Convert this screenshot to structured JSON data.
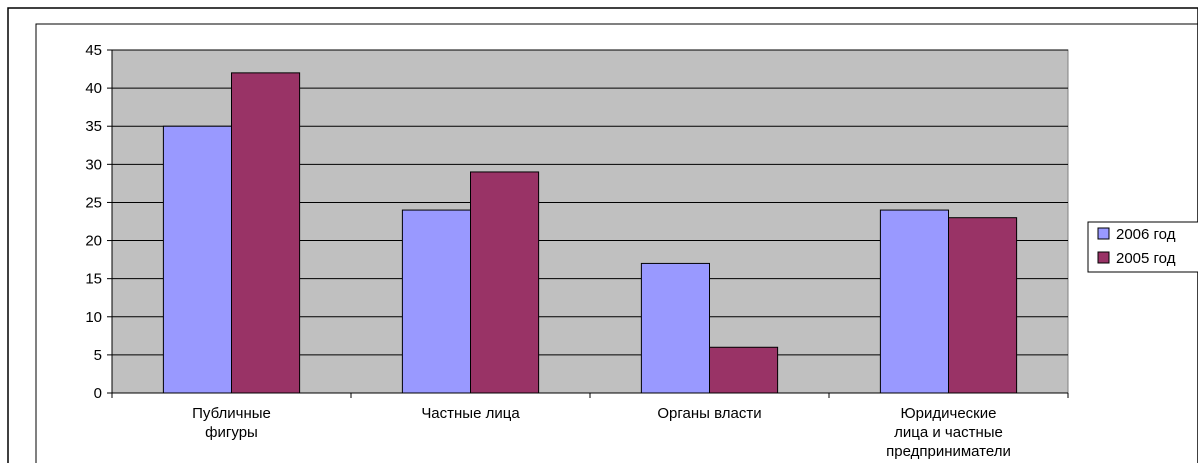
{
  "chart_data": {
    "type": "bar",
    "categories": [
      [
        "Публичные",
        "фигуры"
      ],
      [
        "Частные лица"
      ],
      [
        "Органы власти"
      ],
      [
        "Юридические",
        "лица и частные",
        "предприниматели"
      ]
    ],
    "series": [
      {
        "name": "2006 год",
        "values": [
          35,
          24,
          17,
          24
        ],
        "color": "#9999ff"
      },
      {
        "name": "2005 год",
        "values": [
          42,
          29,
          6,
          23
        ],
        "color": "#993366"
      }
    ],
    "yticks": [
      "0",
      "5",
      "10",
      "15",
      "20",
      "25",
      "30",
      "35",
      "40",
      "45"
    ],
    "ylim": [
      0,
      45
    ],
    "grid": true,
    "plot_background": "#c0c0c0",
    "legend_position": "right"
  }
}
